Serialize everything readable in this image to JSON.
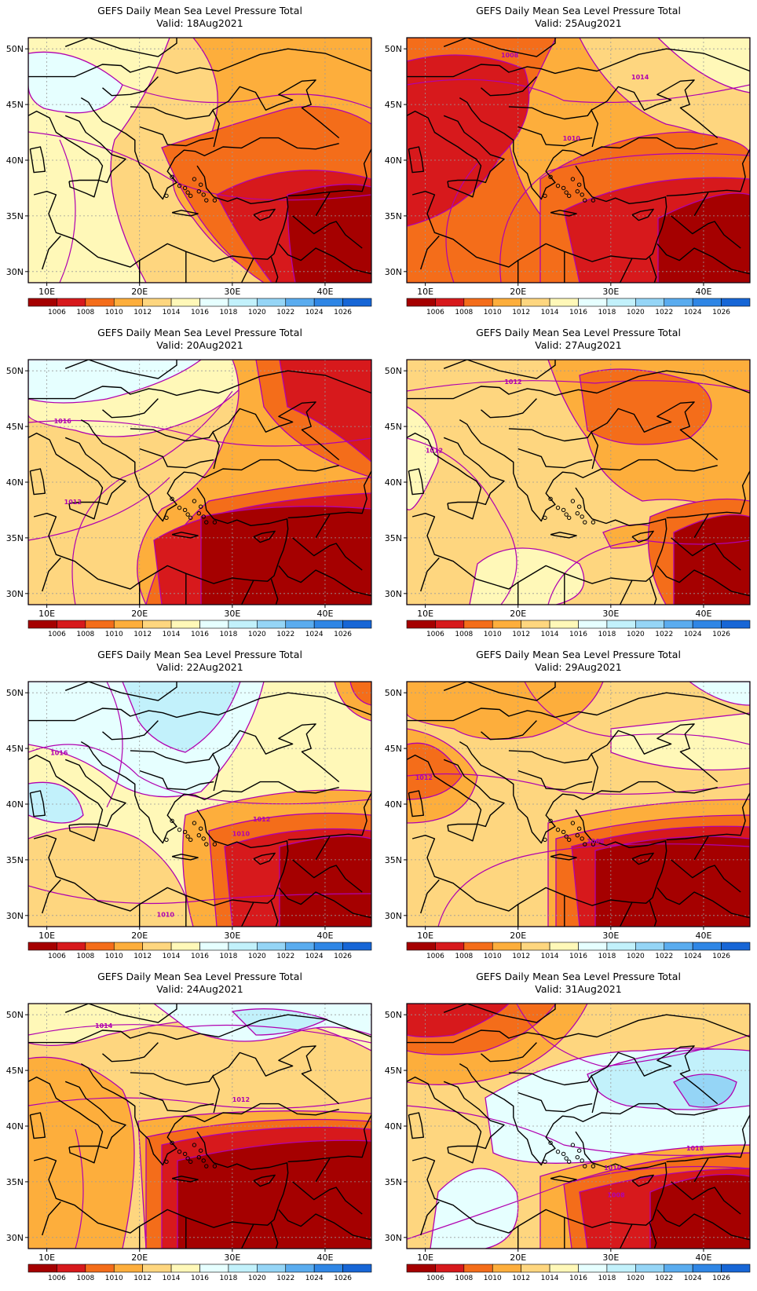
{
  "colorbar": {
    "levels": [
      "1006",
      "1008",
      "1010",
      "1012",
      "1014",
      "1016",
      "1018",
      "1020",
      "1022",
      "1024",
      "1026"
    ],
    "colors": [
      "#a50000",
      "#d7191c",
      "#f46d1a",
      "#fdae3c",
      "#fed67f",
      "#fff8b8",
      "#e6ffff",
      "#c2f1fb",
      "#95d5f6",
      "#5aacef",
      "#2f86e5",
      "#1766d6"
    ],
    "contour_color": "#b000b0"
  },
  "axes": {
    "lat_ticks": [
      "50N",
      "45N",
      "40N",
      "35N",
      "30N"
    ],
    "lon_ticks": [
      "10E",
      "20E",
      "30E",
      "40E"
    ]
  },
  "panels": [
    {
      "title": "GEFS Daily Mean Sea Level Pressure Total",
      "valid": "Valid: 18Aug2021",
      "contour_labels": []
    },
    {
      "title": "GEFS Daily Mean Sea Level Pressure Total",
      "valid": "Valid: 25Aug2021",
      "contour_labels": [
        "1008",
        "1014",
        "1010"
      ]
    },
    {
      "title": "GEFS Daily Mean Sea Level Pressure Total",
      "valid": "Valid: 20Aug2021",
      "contour_labels": [
        "1016",
        "1012"
      ]
    },
    {
      "title": "GEFS Daily Mean Sea Level Pressure Total",
      "valid": "Valid: 27Aug2021",
      "contour_labels": [
        "1012",
        "1012"
      ]
    },
    {
      "title": "GEFS Daily Mean Sea Level Pressure Total",
      "valid": "Valid: 22Aug2021",
      "contour_labels": [
        "1016",
        "1012",
        "1010",
        "1010"
      ]
    },
    {
      "title": "GEFS Daily Mean Sea Level Pressure Total",
      "valid": "Valid: 29Aug2021",
      "contour_labels": [
        "1012",
        "1008"
      ]
    },
    {
      "title": "GEFS Daily Mean Sea Level Pressure Total",
      "valid": "Valid: 24Aug2021",
      "contour_labels": [
        "1014",
        "1012"
      ]
    },
    {
      "title": "GEFS Daily Mean Sea Level Pressure Total",
      "valid": "Valid: 31Aug2021",
      "contour_labels": [
        "1018",
        "1010",
        "1008"
      ]
    }
  ]
}
